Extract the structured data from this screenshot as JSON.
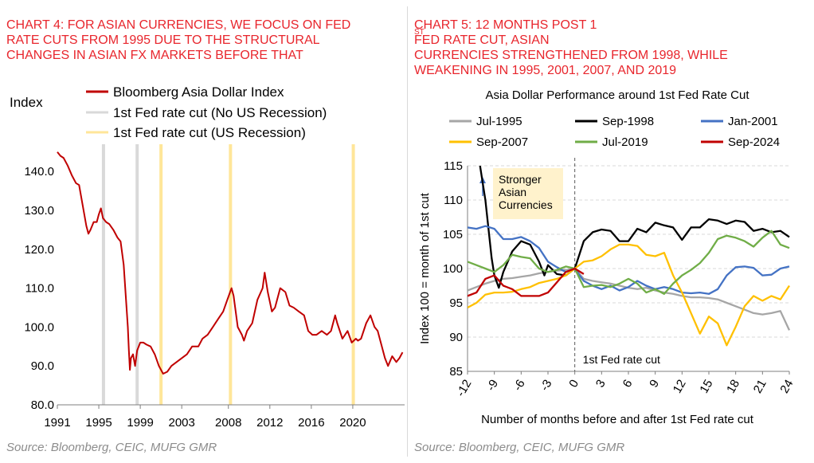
{
  "left": {
    "title_lines": [
      "CHART 4: FOR ASIAN CURRENCIES, WE FOCUS ON FED",
      "RATE CUTS FROM 1995 DUE TO THE STRUCTURAL",
      "CHANGES IN ASIAN FX MARKETS BEFORE THAT"
    ],
    "source": "Source: Bloomberg, CEIC, MUFG GMR"
  },
  "right": {
    "title_line1_pre": "CHART 5: 12 MONTHS POST 1",
    "title_line1_sup": "ST",
    "title_line1_post": " FED RATE CUT, ASIAN",
    "title_lines_rest": [
      "CURRENCIES STRENGTHENED FROM 1998, WHILE",
      "WEAKENING IN 1995, 2001, 2007, AND 2019"
    ],
    "source": "Source: Bloomberg, CEIC, MUFG GMR"
  },
  "chart_data": [
    {
      "type": "line",
      "ylabel": "Index",
      "ylim": [
        80,
        147
      ],
      "xlim": [
        1991,
        2024.5
      ],
      "x_ticks": [
        "1991",
        "1995",
        "1999",
        "2003",
        "2008",
        "2012",
        "2016",
        "2020"
      ],
      "x_tick_years": [
        1991,
        1995,
        1999,
        2003,
        2007.5,
        2011.5,
        2015.5,
        2019.5
      ],
      "y_ticks": [
        "80.0",
        "90.0",
        "100.0",
        "110.0",
        "120.0",
        "130.0",
        "140.0"
      ],
      "y_tick_values": [
        80,
        90,
        100,
        110,
        120,
        130,
        140
      ],
      "legend_position": "top",
      "series": [
        {
          "name": "Bloomberg Asia Dollar Index",
          "color": "#c00000",
          "x": [
            1991.0,
            1991.3,
            1991.6,
            1992.0,
            1992.4,
            1992.8,
            1993.1,
            1993.4,
            1993.8,
            1994.0,
            1994.2,
            1994.5,
            1994.8,
            1995.0,
            1995.2,
            1995.4,
            1995.7,
            1996.0,
            1996.4,
            1996.8,
            1997.1,
            1997.4,
            1997.6,
            1997.8,
            1997.9,
            1998.0,
            1998.1,
            1998.3,
            1998.5,
            1998.7,
            1999.0,
            1999.3,
            1999.6,
            2000.0,
            2000.4,
            2000.8,
            2001.2,
            2001.6,
            2002.0,
            2002.5,
            2003.0,
            2003.5,
            2004.0,
            2004.6,
            2005.0,
            2005.5,
            2006.0,
            2006.5,
            2007.0,
            2007.4,
            2007.8,
            2008.0,
            2008.4,
            2008.8,
            2009.0,
            2009.3,
            2009.8,
            2010.3,
            2010.8,
            2011.0,
            2011.3,
            2011.7,
            2012.0,
            2012.5,
            2013.0,
            2013.4,
            2013.8,
            2014.3,
            2014.8,
            2015.2,
            2015.6,
            2016.0,
            2016.5,
            2017.0,
            2017.4,
            2017.8,
            2018.0,
            2018.5,
            2019.0,
            2019.4,
            2019.8,
            2020.0,
            2020.3,
            2020.8,
            2021.2,
            2021.6,
            2021.9,
            2022.2,
            2022.6,
            2022.9,
            2023.3,
            2023.7,
            2024.0,
            2024.3
          ],
          "values": [
            145.0,
            144.0,
            143.5,
            141.5,
            139.0,
            137.0,
            136.5,
            132.0,
            126.0,
            124.0,
            125.0,
            127.0,
            127.0,
            129.0,
            130.5,
            128.0,
            127.0,
            126.5,
            125.0,
            123.0,
            122.0,
            116.0,
            108.0,
            100.0,
            94.0,
            89.0,
            92.0,
            93.0,
            90.0,
            94.0,
            96.0,
            96.0,
            95.5,
            95.0,
            93.0,
            90.0,
            88.0,
            88.5,
            90.0,
            91.0,
            92.0,
            93.0,
            95.0,
            95.0,
            97.0,
            98.0,
            100.0,
            102.0,
            104.0,
            107.0,
            110.0,
            108.0,
            100.0,
            98.0,
            96.5,
            99.0,
            101.0,
            107.0,
            110.0,
            114.0,
            109.0,
            104.0,
            105.0,
            110.0,
            109.0,
            105.5,
            105.0,
            104.0,
            103.0,
            99.0,
            98.0,
            98.0,
            99.0,
            98.0,
            99.0,
            103.0,
            101.0,
            97.0,
            99.0,
            96.0,
            97.0,
            96.5,
            97.0,
            101.0,
            103.0,
            100.0,
            99.0,
            96.0,
            92.0,
            90.0,
            92.5,
            91.0,
            92.0,
            93.5
          ]
        }
      ],
      "cut_markers": [
        {
          "name": "1st Fed rate cut (No US Recession)",
          "color": "#d9d9d9",
          "years": [
            1995.45,
            1998.7
          ]
        },
        {
          "name": "1st Fed rate cut (US Recession)",
          "color": "#ffe699",
          "years": [
            2001.0,
            2007.7,
            2019.55
          ]
        }
      ]
    },
    {
      "type": "line",
      "title": "Asia Dollar Performance around 1st Fed Rate Cut",
      "xlabel": "Number of months before and after 1st Fed rate cut",
      "ylabel": "Index 100 = month of 1st cut",
      "ylim": [
        85,
        115
      ],
      "xlim": [
        -12,
        24
      ],
      "x_ticks": [
        "-12",
        "-9",
        "-6",
        "-3",
        "0",
        "3",
        "6",
        "9",
        "12",
        "15",
        "18",
        "21",
        "24"
      ],
      "x_tick_values": [
        -12,
        -9,
        -6,
        -3,
        0,
        3,
        6,
        9,
        12,
        15,
        18,
        21,
        24
      ],
      "y_ticks": [
        "85",
        "90",
        "95",
        "100",
        "105",
        "110",
        "115"
      ],
      "y_tick_values": [
        85,
        90,
        95,
        100,
        105,
        110,
        115
      ],
      "grid": true,
      "legend_position": "top",
      "annotations": {
        "box_text": [
          "Stronger",
          "Asian",
          "Currencies"
        ],
        "cut_label": "1st Fed rate cut"
      },
      "series": [
        {
          "name": "Jul-1995",
          "color": "#a6a6a6",
          "x": [
            -12,
            -11,
            -10,
            -9,
            -8,
            -7,
            -6,
            -5,
            -4,
            -3,
            -2,
            -1,
            0,
            1,
            2,
            3,
            4,
            5,
            6,
            7,
            8,
            9,
            10,
            11,
            12,
            13,
            14,
            15,
            16,
            17,
            18,
            19,
            20,
            21,
            22,
            23,
            24
          ],
          "values": [
            96.8,
            97.3,
            97.8,
            98.2,
            98.5,
            98.6,
            98.8,
            99.0,
            99.3,
            99.5,
            99.7,
            99.8,
            100.0,
            98.5,
            98.2,
            98.0,
            97.8,
            97.5,
            97.2,
            97.0,
            97.2,
            96.8,
            96.5,
            96.3,
            96.0,
            95.8,
            95.8,
            95.7,
            95.5,
            95.0,
            94.5,
            94.0,
            93.5,
            93.3,
            93.5,
            93.8,
            91.0
          ]
        },
        {
          "name": "Sep-1998",
          "color": "#000000",
          "x": [
            -10.6,
            -10,
            -9.3,
            -9,
            -8.5,
            -8,
            -7,
            -6,
            -5,
            -4,
            -3.4,
            -3,
            -2,
            -1,
            0,
            1,
            2,
            3,
            4,
            5,
            6,
            7,
            8,
            9,
            10,
            11,
            12,
            13,
            14,
            15,
            16,
            17,
            18,
            19,
            20,
            21,
            22,
            23,
            24
          ],
          "values": [
            115.0,
            110.0,
            101.5,
            99.0,
            97.2,
            99.5,
            102.5,
            104.0,
            103.5,
            101.0,
            99.0,
            100.5,
            99.2,
            99.0,
            100.0,
            104.0,
            105.3,
            105.7,
            105.5,
            104.0,
            104.0,
            105.8,
            105.3,
            106.7,
            106.3,
            106.0,
            104.2,
            106.0,
            106.0,
            107.2,
            107.0,
            106.5,
            107.0,
            106.8,
            105.5,
            105.8,
            105.3,
            105.5,
            104.6
          ]
        },
        {
          "name": "Jan-2001",
          "color": "#4472c4",
          "x": [
            -12,
            -11,
            -10,
            -9,
            -8,
            -7,
            -6,
            -5,
            -4,
            -3,
            -2,
            -1,
            0,
            1,
            2,
            3,
            4,
            5,
            6,
            7,
            8,
            9,
            10,
            11,
            12,
            13,
            14,
            15,
            16,
            17,
            18,
            19,
            20,
            21,
            22,
            23,
            24
          ],
          "values": [
            106.0,
            105.8,
            106.2,
            105.8,
            104.3,
            104.3,
            104.6,
            104.0,
            103.0,
            101.0,
            100.2,
            99.5,
            100.0,
            98.2,
            97.5,
            97.0,
            97.5,
            96.8,
            97.3,
            98.2,
            97.5,
            97.0,
            97.3,
            97.0,
            96.5,
            96.4,
            96.5,
            96.3,
            97.0,
            99.0,
            100.2,
            100.3,
            100.1,
            99.0,
            99.1,
            100.0,
            100.3
          ]
        },
        {
          "name": "Sep-2007",
          "color": "#ffc000",
          "x": [
            -12,
            -11,
            -10,
            -9,
            -8,
            -7,
            -6,
            -5,
            -4,
            -3,
            -2,
            -1,
            0,
            1,
            2,
            3,
            4,
            5,
            6,
            7,
            8,
            9,
            10,
            11,
            12,
            13,
            14,
            15,
            16,
            17,
            18,
            19,
            20,
            21,
            22,
            23,
            24
          ],
          "values": [
            94.3,
            95.0,
            96.2,
            96.5,
            96.5,
            96.6,
            97.0,
            97.3,
            97.9,
            98.2,
            98.5,
            99.0,
            100.0,
            101.0,
            101.2,
            101.8,
            102.8,
            103.5,
            103.5,
            103.3,
            102.0,
            101.8,
            102.3,
            99.0,
            96.5,
            93.5,
            90.5,
            93.0,
            92.0,
            88.8,
            91.5,
            94.5,
            96.0,
            95.3,
            96.0,
            95.5,
            97.5
          ]
        },
        {
          "name": "Jul-2019",
          "color": "#70ad47",
          "x": [
            -12,
            -11,
            -10,
            -9,
            -8,
            -7,
            -6,
            -5,
            -4,
            -3,
            -2,
            -1,
            0,
            1,
            2,
            3,
            4,
            5,
            6,
            7,
            8,
            9,
            10,
            11,
            12,
            13,
            14,
            15,
            16,
            17,
            18,
            19,
            20,
            21,
            22,
            23,
            24
          ],
          "values": [
            101.0,
            100.5,
            100.0,
            99.5,
            100.5,
            102.0,
            101.7,
            101.5,
            100.0,
            99.5,
            99.8,
            100.3,
            100.0,
            97.3,
            97.5,
            97.6,
            97.3,
            97.8,
            98.5,
            97.8,
            96.5,
            97.0,
            96.3,
            97.8,
            99.0,
            99.8,
            100.8,
            102.3,
            104.3,
            104.8,
            104.5,
            104.0,
            103.2,
            104.5,
            105.5,
            103.5,
            103.0
          ]
        },
        {
          "name": "Sep-2024",
          "color": "#c00000",
          "x": [
            -12,
            -11,
            -10,
            -9,
            -8,
            -7,
            -6,
            -5,
            -4,
            -3,
            -2,
            -1,
            0,
            1
          ],
          "values": [
            96.0,
            96.5,
            98.5,
            99.0,
            97.5,
            97.0,
            96.0,
            96.0,
            96.0,
            96.5,
            98.0,
            99.5,
            100.0,
            99.2
          ]
        }
      ]
    }
  ]
}
